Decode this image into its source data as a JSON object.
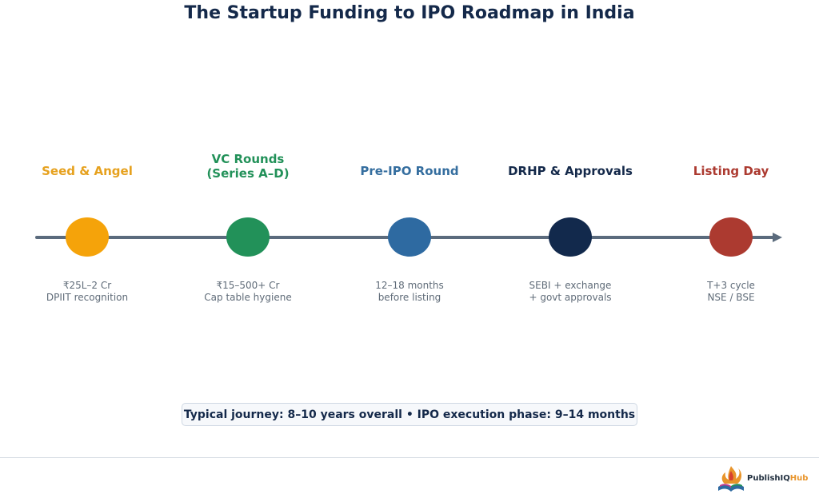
{
  "title": "The Startup Funding to IPO Roadmap in India",
  "stages": [
    {
      "title": "Seed & Angel",
      "desc_line1": "₹25L–2 Cr",
      "desc_line2": "DPIIT recognition",
      "color": "#f5a30a"
    },
    {
      "title": "VC Rounds\n(Series A–D)",
      "desc_line1": "₹15–500+ Cr",
      "desc_line2": "Cap table hygiene",
      "color": "#229159"
    },
    {
      "title": "Pre-IPO Round",
      "desc_line1": "12–18 months",
      "desc_line2": "before listing",
      "color": "#2e6aa1"
    },
    {
      "title": "DRHP & Approvals",
      "desc_line1": "SEBI + exchange",
      "desc_line2": "+ govt approvals",
      "color": "#12294c"
    },
    {
      "title": "Listing Day",
      "desc_line1": "T+3 cycle",
      "desc_line2": "NSE / BSE",
      "color": "#ac3a30"
    }
  ],
  "footer_note": "Typical journey: 8–10 years overall • IPO execution phase: 9–14 months",
  "brand": {
    "name_main": "PublishIQ",
    "name_accent": "Hub",
    "icon": "book-flame-logo-icon"
  },
  "line_color": "#5b6b7d"
}
